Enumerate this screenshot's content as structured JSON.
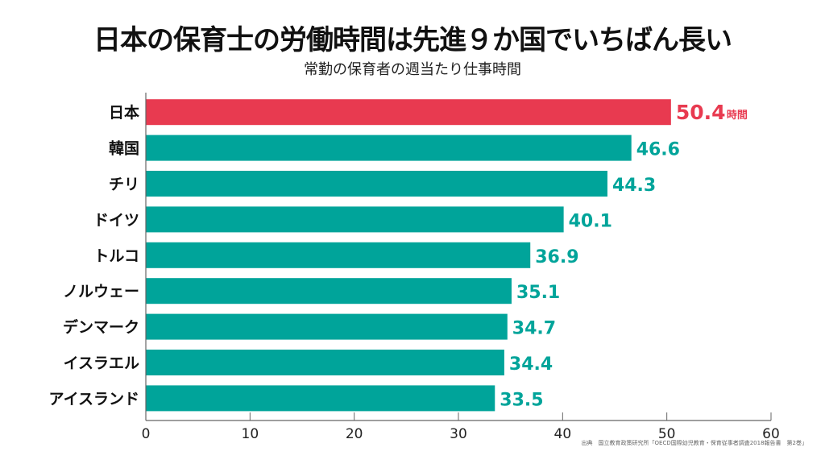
{
  "chart_data": {
    "type": "bar",
    "orientation": "horizontal",
    "title": "日本の保育士の労働時間は先進９か国でいちばん長い",
    "subtitle": "常勤の保育者の週当たり仕事時間",
    "categories": [
      "日本",
      "韓国",
      "チリ",
      "ドイツ",
      "トルコ",
      "ノルウェー",
      "デンマーク",
      "イスラエル",
      "アイスランド"
    ],
    "values": [
      50.4,
      46.6,
      44.3,
      40.1,
      36.9,
      35.1,
      34.7,
      34.4,
      33.5
    ],
    "value_labels": [
      "50.4",
      "46.6",
      "44.3",
      "40.1",
      "36.9",
      "35.1",
      "34.7",
      "34.4",
      "33.5"
    ],
    "unit_label": "時間",
    "highlight_index": 0,
    "xlim": [
      0,
      60
    ],
    "xticks": [
      "0",
      "10",
      "20",
      "30",
      "40",
      "50",
      "60"
    ],
    "xlabel": "",
    "ylabel": "",
    "grid": false,
    "legend": "none",
    "colors": {
      "highlight": "#e83a50",
      "default": "#00a49a"
    }
  },
  "source": "出典　国立教育政策研究所「OECD国際幼児教育・保育従事者調査2018報告書　第2巻」"
}
